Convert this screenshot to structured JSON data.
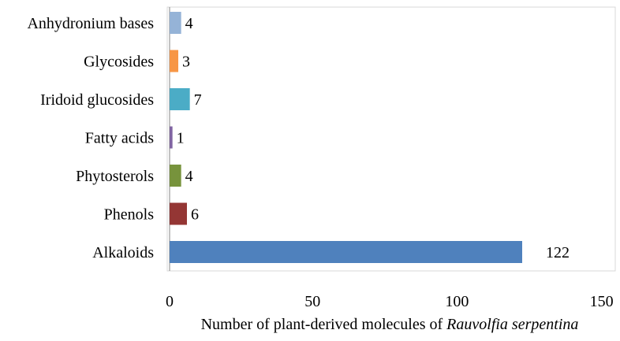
{
  "chart_data": {
    "type": "bar",
    "orientation": "horizontal",
    "categories": [
      "Alkaloids",
      "Phenols",
      "Phytosterols",
      "Fatty acids",
      "Iridoid glucosides",
      "Glycosides",
      "Anhydronium bases"
    ],
    "values": [
      122,
      6,
      4,
      1,
      7,
      3,
      4
    ],
    "value_labels": [
      "122",
      "6",
      "4",
      "1",
      "7",
      "3",
      "4"
    ],
    "colors": [
      "#4f81bd",
      "#943634",
      "#77933c",
      "#8064a2",
      "#4bacc6",
      "#f79646",
      "#95b3d7"
    ],
    "xlabel_prefix": "Number of plant-derived molecules of ",
    "xlabel_italic": "Rauvolfia serpentina",
    "xlim": [
      0,
      150
    ],
    "xticks": [
      0,
      50,
      100,
      150
    ],
    "xtick_labels": [
      "0",
      "50",
      "100",
      "150"
    ],
    "grid": false,
    "legend": "none",
    "frame": true
  }
}
